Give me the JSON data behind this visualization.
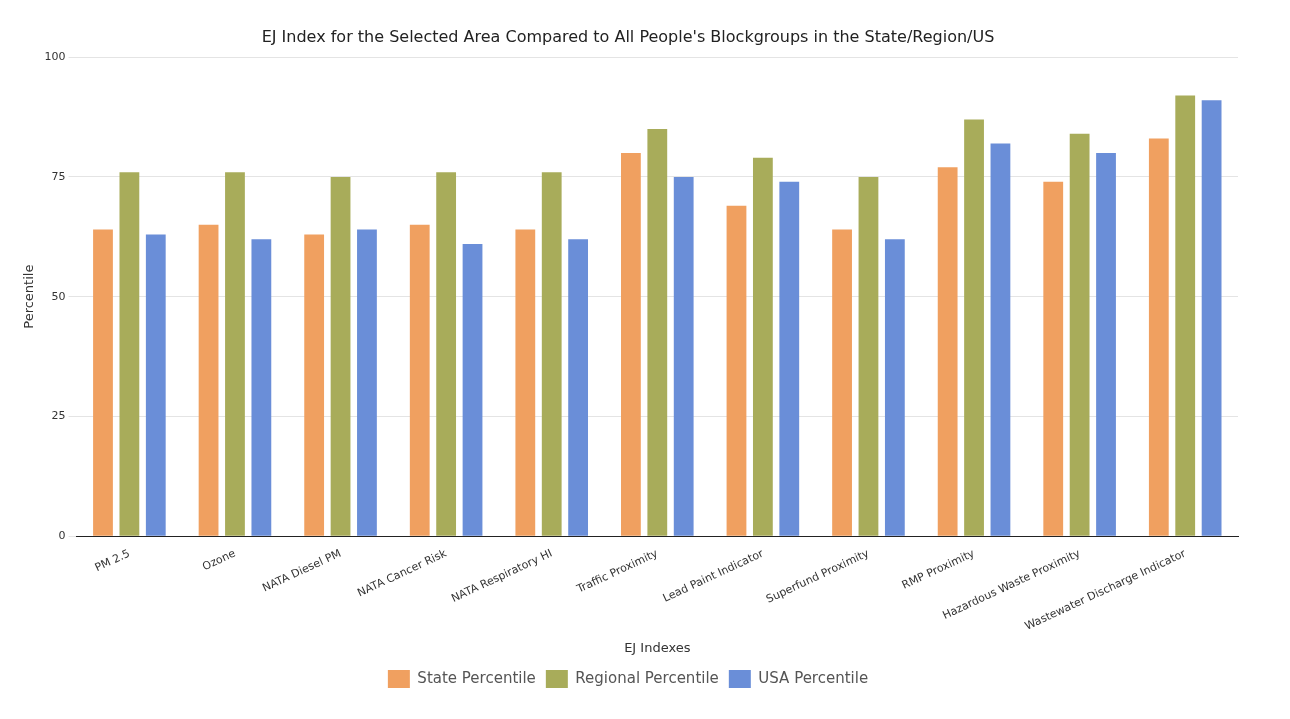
{
  "chart_data": {
    "type": "bar",
    "title": "EJ Index for the Selected Area Compared to All People's Blockgroups in the State/Region/US",
    "xlabel": "EJ Indexes",
    "ylabel": "Percentile",
    "categories": [
      "PM 2.5",
      "Ozone",
      "NATA Diesel PM",
      "NATA Cancer Risk",
      "NATA Respiratory HI",
      "Traffic Proximity",
      "Lead Paint Indicator",
      "Superfund Proximity",
      "RMP Proximity",
      "Hazardous Waste Proximity",
      "Wastewater Discharge Indicator"
    ],
    "series": [
      {
        "name": "State Percentile",
        "color": "#f0a060",
        "values": [
          64,
          65,
          63,
          65,
          64,
          80,
          69,
          64,
          77,
          74,
          83
        ]
      },
      {
        "name": "Regional Percentile",
        "color": "#a8ac5a",
        "values": [
          76,
          76,
          75,
          76,
          76,
          85,
          79,
          75,
          87,
          84,
          92
        ]
      },
      {
        "name": "USA Percentile",
        "color": "#6a8ed8",
        "values": [
          63,
          62,
          64,
          61,
          62,
          75,
          74,
          62,
          82,
          80,
          91
        ]
      }
    ],
    "ylim": [
      0,
      100
    ],
    "yticks": [
      0,
      25,
      50,
      75,
      100
    ],
    "grid": "y",
    "legend": "bottom"
  }
}
